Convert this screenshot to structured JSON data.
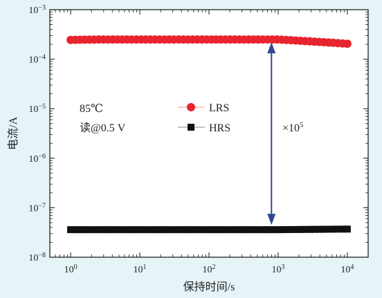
{
  "chart_data": {
    "type": "scatter",
    "xlabel": "保持时间/s",
    "ylabel": "电流/A",
    "x_scale": "log",
    "y_scale": "log",
    "xlim": [
      0.5,
      20000
    ],
    "ylim": [
      1e-08,
      0.001
    ],
    "x_ticks": [
      {
        "value": 1,
        "label_base": "10",
        "label_exp": "0"
      },
      {
        "value": 10,
        "label_base": "10",
        "label_exp": "1"
      },
      {
        "value": 100,
        "label_base": "10",
        "label_exp": "2"
      },
      {
        "value": 1000,
        "label_base": "10",
        "label_exp": "3"
      },
      {
        "value": 10000,
        "label_base": "10",
        "label_exp": "4"
      }
    ],
    "y_ticks": [
      {
        "value": 1e-08,
        "label_base": "10",
        "label_exp": "−8"
      },
      {
        "value": 1e-07,
        "label_base": "10",
        "label_exp": "−7"
      },
      {
        "value": 1e-06,
        "label_base": "10",
        "label_exp": "−6"
      },
      {
        "value": 1e-05,
        "label_base": "10",
        "label_exp": "−5"
      },
      {
        "value": 0.0001,
        "label_base": "10",
        "label_exp": "−4"
      },
      {
        "value": 0.001,
        "label_base": "10",
        "label_exp": "−3"
      }
    ],
    "series": [
      {
        "name": "LRS",
        "marker": "circle",
        "color": "#e8242f",
        "x_start": 1,
        "x_end": 10000,
        "n_points": 60,
        "y_start": 0.000245,
        "y_plateau": 0.00025,
        "y_end": 0.000205
      },
      {
        "name": "HRS",
        "marker": "square",
        "color": "#111111",
        "x_start": 1,
        "x_end": 10000,
        "n_points": 60,
        "y_start": 3.6e-08,
        "y_plateau": 3.6e-08,
        "y_end": 3.7e-08
      }
    ],
    "annotations": {
      "temp": "85℃",
      "read": "读@0.5 V",
      "ratio_base": "×10",
      "ratio_exp": "5",
      "arrow_color": "#2f4a8f",
      "arrow_x": 800,
      "arrow_y_top": 0.00022,
      "arrow_y_bottom": 4.5e-08
    },
    "legend": {
      "placement": "center"
    }
  }
}
